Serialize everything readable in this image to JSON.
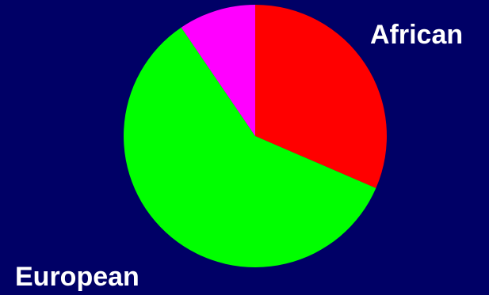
{
  "chart_data": {
    "type": "pie",
    "title": "",
    "slices": [
      {
        "label": "African",
        "value": 31.5,
        "color": "#ff0000"
      },
      {
        "label": "European",
        "value": 59,
        "color": "#00ff00"
      },
      {
        "label": "",
        "value": 9.5,
        "color": "#ff00ff"
      }
    ],
    "background": "#000066",
    "label_color": "#ffffff",
    "legend": "none"
  }
}
